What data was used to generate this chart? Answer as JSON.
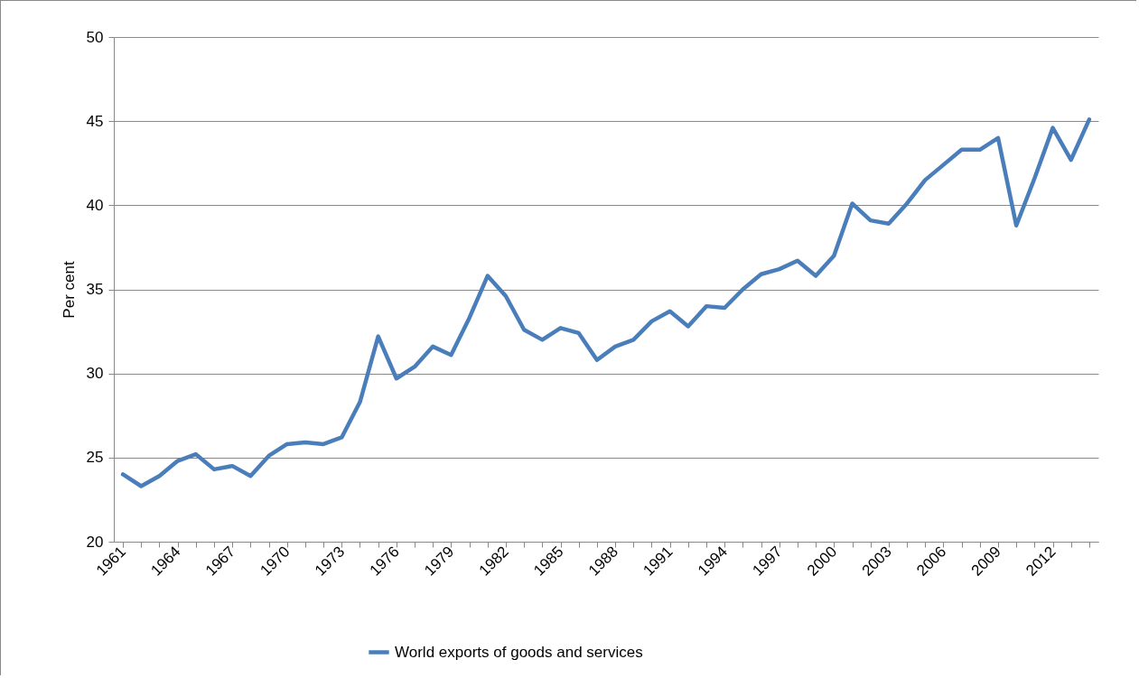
{
  "chart_data": {
    "type": "line",
    "ylabel": "Per cent",
    "categories": [
      "1961",
      null,
      null,
      "1964",
      null,
      null,
      "1967",
      null,
      null,
      "1970",
      null,
      null,
      "1973",
      null,
      null,
      "1976",
      null,
      null,
      "1979",
      null,
      null,
      "1982",
      null,
      null,
      "1985",
      null,
      null,
      "1988",
      null,
      null,
      "1991",
      null,
      null,
      "1994",
      null,
      null,
      "1997",
      null,
      null,
      "2000",
      null,
      null,
      "2003",
      null,
      null,
      "2006",
      null,
      null,
      "2009",
      null,
      null,
      "2012",
      null,
      null
    ],
    "series": [
      {
        "name": "World exports of goods and services",
        "color": "#4a7ebb",
        "values": [
          24.0,
          23.3,
          23.9,
          24.8,
          25.2,
          24.3,
          24.5,
          23.9,
          25.1,
          25.8,
          25.9,
          25.8,
          26.2,
          28.3,
          32.2,
          29.7,
          30.4,
          31.6,
          31.1,
          33.3,
          35.8,
          34.6,
          32.6,
          32.0,
          32.7,
          32.4,
          30.8,
          31.6,
          32.0,
          33.1,
          33.7,
          32.8,
          34.0,
          33.9,
          35.0,
          35.9,
          36.2,
          36.7,
          35.8,
          37.0,
          40.1,
          39.1,
          38.9,
          40.1,
          41.5,
          42.4,
          43.3,
          43.3,
          44.0,
          38.8,
          41.6,
          44.6,
          42.7,
          45.1
        ]
      }
    ],
    "ylim": [
      20,
      50
    ],
    "yticks": [
      20,
      25,
      30,
      35,
      40,
      45,
      50
    ],
    "grid": "y",
    "legend": "bottom",
    "marker": "none",
    "line_style": "solid"
  }
}
